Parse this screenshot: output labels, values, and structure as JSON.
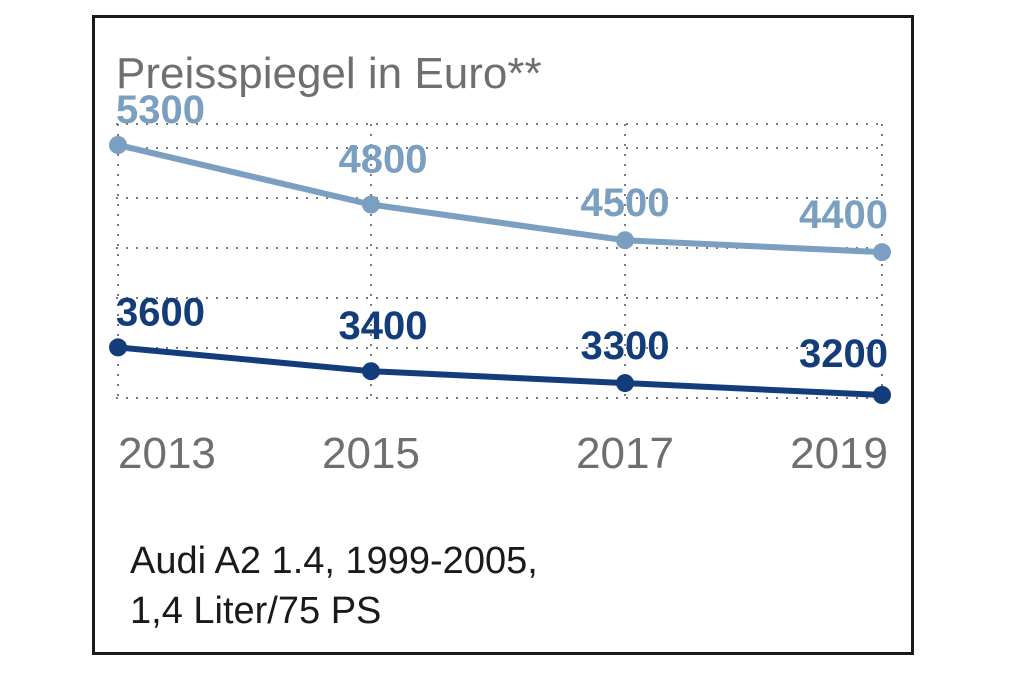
{
  "chart_data": {
    "type": "line",
    "title": "Preisspiegel in Euro**",
    "x": [
      "2013",
      "2015",
      "2017",
      "2019"
    ],
    "ylim": [
      3100,
      5400
    ],
    "grid": true,
    "series": [
      {
        "name": "",
        "color": "#7a9fc0",
        "values": [
          5300,
          4800,
          4500,
          4400
        ]
      },
      {
        "name": "",
        "color": "#133d7a",
        "values": [
          3600,
          3400,
          3300,
          3200
        ]
      }
    ]
  },
  "caption": {
    "line1": "Audi A2 1.4, 1999-2005,",
    "line2": "1,4 Liter/75 PS"
  }
}
